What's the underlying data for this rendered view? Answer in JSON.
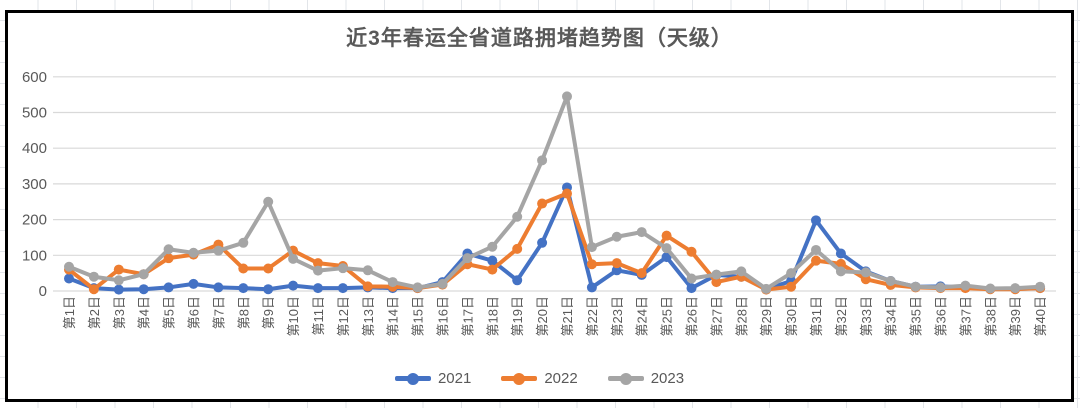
{
  "chart_data": {
    "type": "line",
    "title": "近3年春运全省道路拥堵趋势图（天级）",
    "categories": [
      "第1日",
      "第2日",
      "第3日",
      "第4日",
      "第5日",
      "第6日",
      "第7日",
      "第8日",
      "第9日",
      "第10日",
      "第11日",
      "第12日",
      "第13日",
      "第14日",
      "第15日",
      "第16日",
      "第17日",
      "第18日",
      "第19日",
      "第20日",
      "第21日",
      "第22日",
      "第23日",
      "第24日",
      "第25日",
      "第26日",
      "第27日",
      "第28日",
      "第29日",
      "第30日",
      "第31日",
      "第32日",
      "第33日",
      "第34日",
      "第35日",
      "第36日",
      "第37日",
      "第38日",
      "第39日",
      "第40日"
    ],
    "series": [
      {
        "name": "2021",
        "color": "#4472C4",
        "values": [
          35,
          8,
          4,
          5,
          10,
          20,
          10,
          8,
          5,
          15,
          8,
          8,
          10,
          8,
          8,
          25,
          105,
          85,
          30,
          135,
          290,
          10,
          58,
          45,
          95,
          8,
          45,
          40,
          5,
          28,
          198,
          105,
          55,
          28,
          12,
          13,
          10,
          6,
          6,
          8
        ]
      },
      {
        "name": "2022",
        "color": "#ED7D31",
        "values": [
          60,
          5,
          60,
          47,
          92,
          102,
          130,
          63,
          63,
          113,
          78,
          70,
          13,
          12,
          8,
          18,
          75,
          60,
          118,
          245,
          273,
          75,
          78,
          50,
          155,
          110,
          25,
          40,
          4,
          12,
          85,
          76,
          33,
          17,
          10,
          8,
          8,
          5,
          5,
          8
        ]
      },
      {
        "name": "2023",
        "color": "#A5A5A5",
        "values": [
          68,
          40,
          30,
          47,
          117,
          107,
          113,
          135,
          250,
          90,
          57,
          64,
          58,
          25,
          10,
          20,
          92,
          124,
          208,
          366,
          545,
          123,
          152,
          165,
          120,
          35,
          46,
          55,
          6,
          50,
          115,
          55,
          52,
          28,
          12,
          10,
          15,
          7,
          8,
          12
        ]
      }
    ],
    "y_axis": {
      "min": 0,
      "max": 600,
      "step": 100,
      "tick_labels": [
        "0",
        "100",
        "200",
        "300",
        "400",
        "500",
        "600"
      ]
    },
    "x_axis_label_rotation": -90,
    "grid": true,
    "legend_position": "bottom",
    "legend_entries": [
      "2021",
      "2022",
      "2023"
    ]
  },
  "style": {
    "title_color": "#595959",
    "axis_label_color": "#595959",
    "gridline_color": "#D9D9D9",
    "chart_border_color": "#000000",
    "sheet_grid_color": "#E2E5E9"
  }
}
